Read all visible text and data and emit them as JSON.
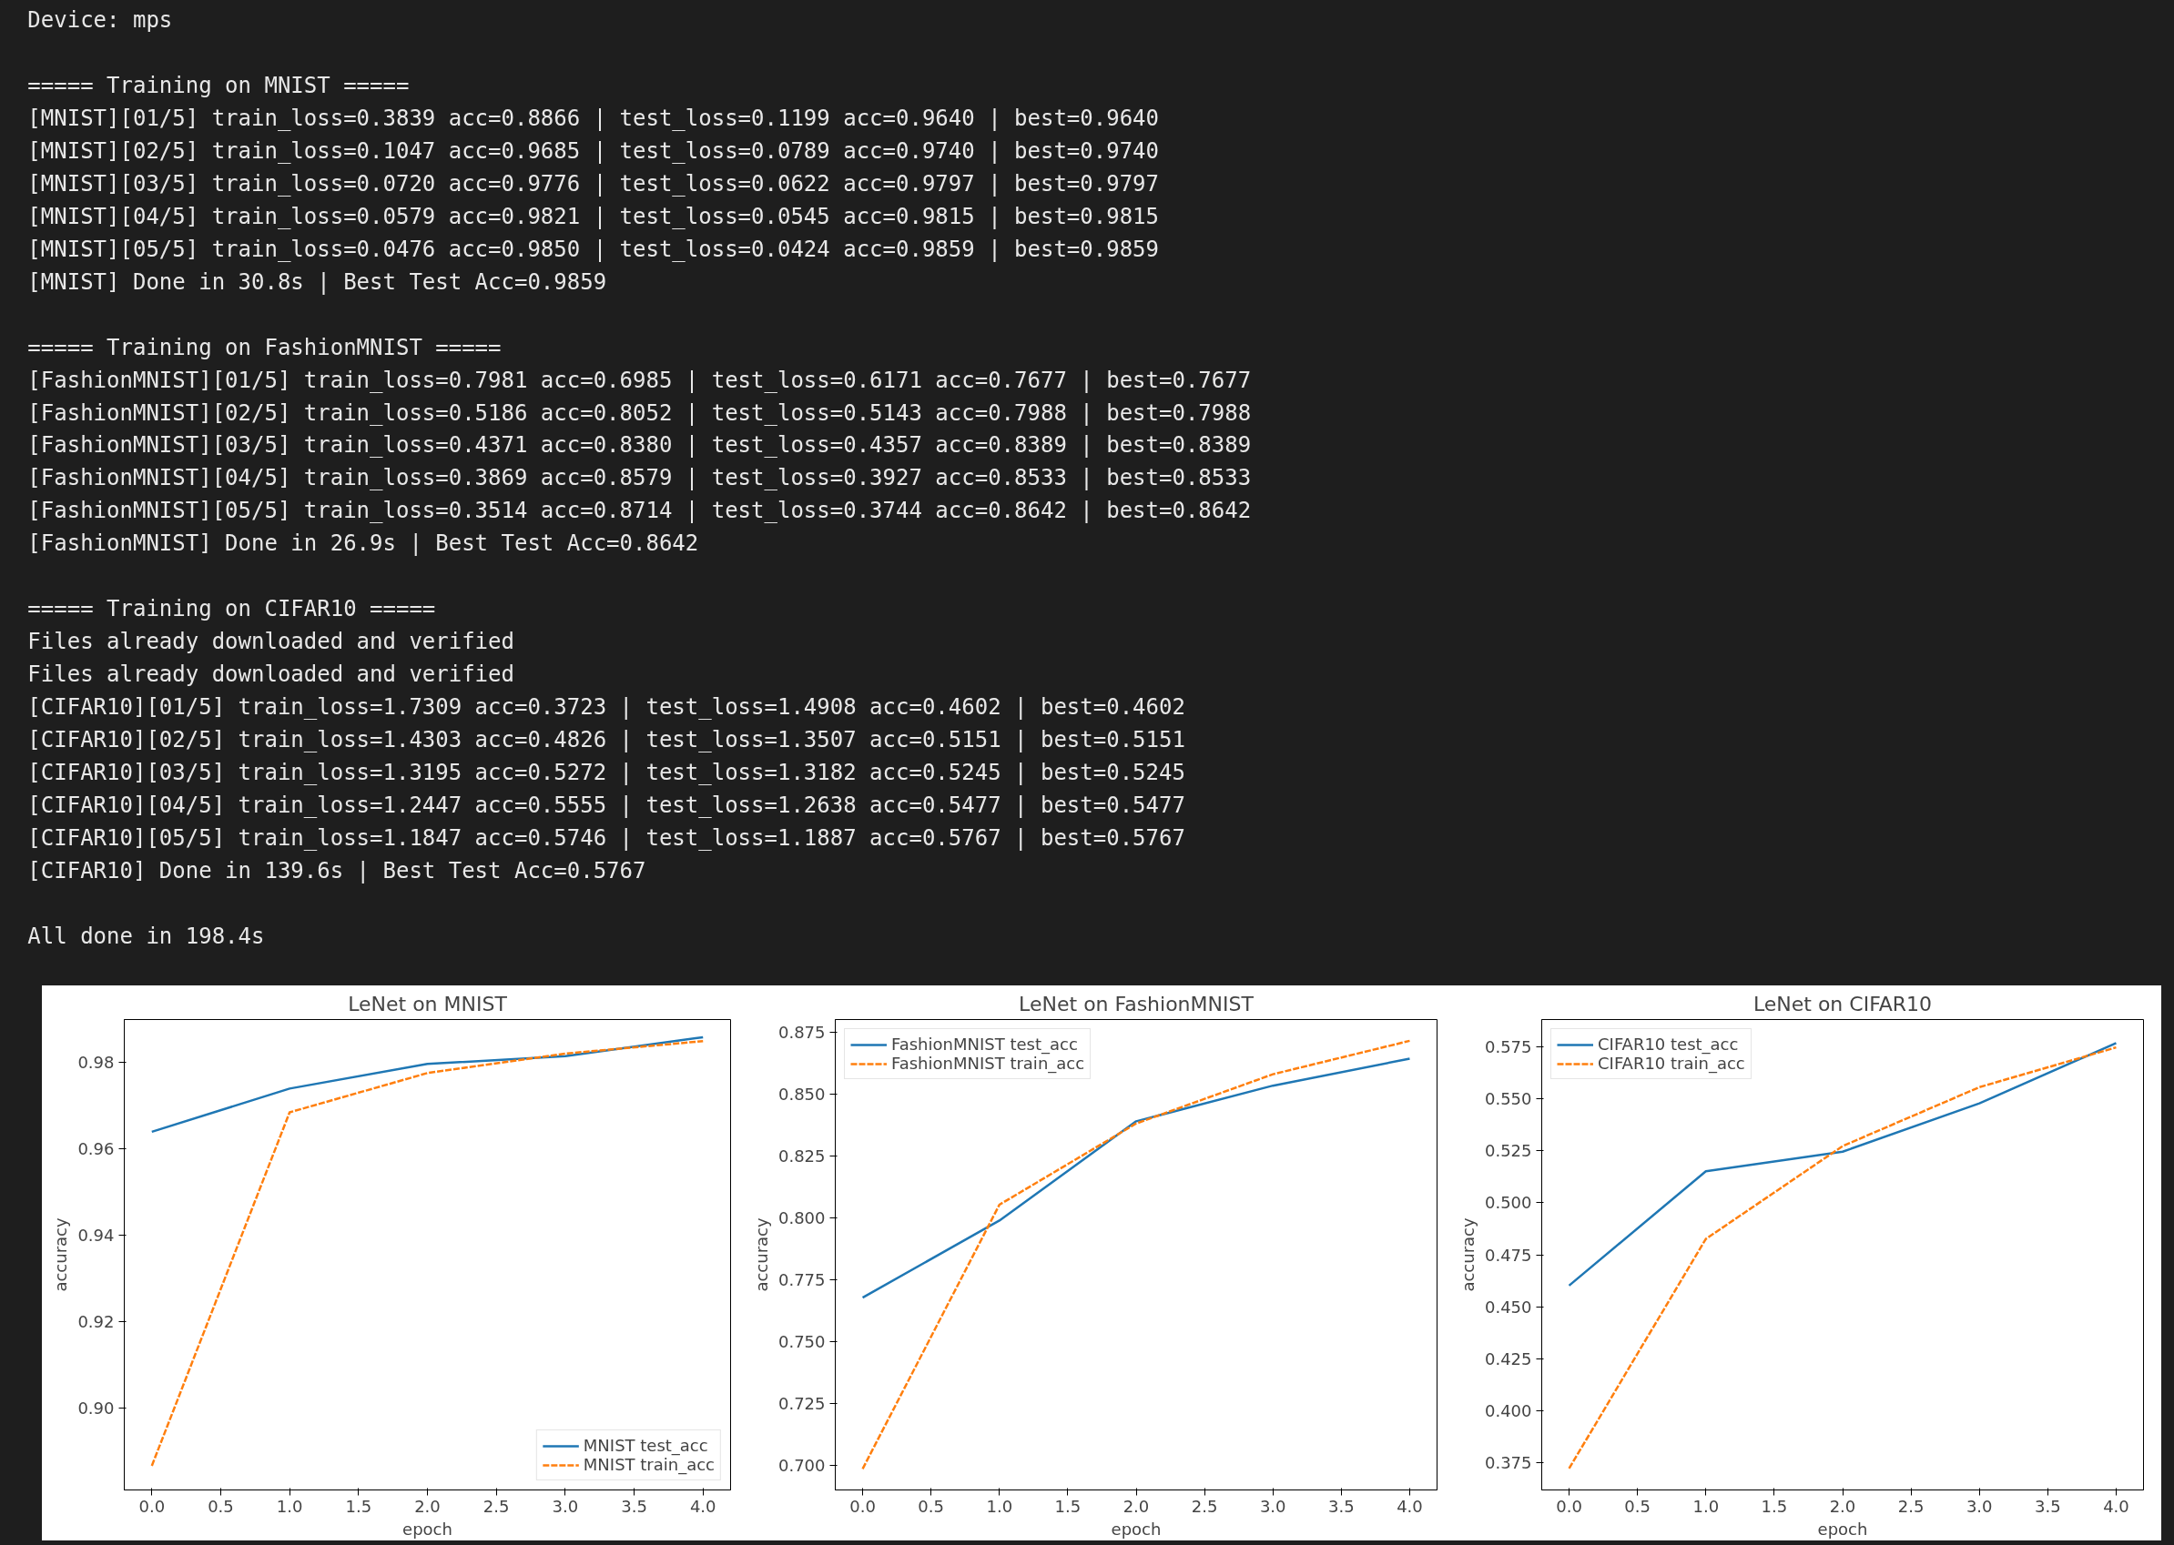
{
  "chart_data": [
    {
      "type": "other",
      "annotations": [
        "Device: mps",
        "===== Training on MNIST =====\n[MNIST][01/5] train_loss=0.3839 acc=0.8866 | test_loss=0.1199 acc=0.9640 | best=0.9640\n[MNIST][02/5] train_loss=0.1047 acc=0.9685 | test_loss=0.0789 acc=0.9740 | best=0.9740\n[MNIST][03/5] train_loss=0.0720 acc=0.9776 | test_loss=0.0622 acc=0.9797 | best=0.9797\n[MNIST][04/5] train_loss=0.0579 acc=0.9821 | test_loss=0.0545 acc=0.9815 | best=0.9815\n[MNIST][05/5] train_loss=0.0476 acc=0.9850 | test_loss=0.0424 acc=0.9859 | best=0.9859\n[MNIST] Done in 30.8s | Best Test Acc=0.9859",
        "===== Training on FashionMNIST =====\n[FashionMNIST][01/5] train_loss=0.7981 acc=0.6985 | test_loss=0.6171 acc=0.7677 | best=0.7677\n[FashionMNIST][02/5] train_loss=0.5186 acc=0.8052 | test_loss=0.5143 acc=0.7988 | best=0.7988\n[FashionMNIST][03/5] train_loss=0.4371 acc=0.8380 | test_loss=0.4357 acc=0.8389 | best=0.8389\n[FashionMNIST][04/5] train_loss=0.3869 acc=0.8579 | test_loss=0.3927 acc=0.8533 | best=0.8533\n[FashionMNIST][05/5] train_loss=0.3514 acc=0.8714 | test_loss=0.3744 acc=0.8642 | best=0.8642\n[FashionMNIST] Done in 26.9s | Best Test Acc=0.8642",
        "===== Training on CIFAR10 =====\nFiles already downloaded and verified\nFiles already downloaded and verified\n[CIFAR10][01/5] train_loss=1.7309 acc=0.3723 | test_loss=1.4908 acc=0.4602 | best=0.4602\n[CIFAR10][02/5] train_loss=1.4303 acc=0.4826 | test_loss=1.3507 acc=0.5151 | best=0.5151\n[CIFAR10][03/5] train_loss=1.3195 acc=0.5272 | test_loss=1.3182 acc=0.5245 | best=0.5245\n[CIFAR10][04/5] train_loss=1.2447 acc=0.5555 | test_loss=1.2638 acc=0.5477 | best=0.5477\n[CIFAR10][05/5] train_loss=1.1847 acc=0.5746 | test_loss=1.1887 acc=0.5767 | best=0.5767\n[CIFAR10] Done in 139.6s | Best Test Acc=0.5767",
        "All done in 198.4s"
      ]
    },
    {
      "type": "line",
      "title": "LeNet on MNIST",
      "xlabel": "epoch",
      "ylabel": "accuracy",
      "x": [
        0,
        1,
        2,
        3,
        4
      ],
      "legend": "bottom right",
      "series": [
        {
          "name": "MNIST test_acc",
          "color": "#1f77b4",
          "line_style": "solid",
          "values": [
            0.964,
            0.974,
            0.9797,
            0.9815,
            0.9859
          ]
        },
        {
          "name": "MNIST train_acc",
          "color": "#ff7f0e",
          "line_style": "dashed",
          "values": [
            0.8866,
            0.9685,
            0.9776,
            0.9821,
            0.985
          ]
        }
      ],
      "xlim": [
        -0.2,
        4.2
      ],
      "ylim": [
        0.881,
        0.99
      ],
      "xticks": [
        {
          "value": 0,
          "label": "0.0"
        },
        {
          "value": 0.5,
          "label": "0.5"
        },
        {
          "value": 1,
          "label": "1.0"
        },
        {
          "value": 1.5,
          "label": "1.5"
        },
        {
          "value": 2,
          "label": "2.0"
        },
        {
          "value": 2.5,
          "label": "2.5"
        },
        {
          "value": 3,
          "label": "3.0"
        },
        {
          "value": 3.5,
          "label": "3.5"
        },
        {
          "value": 4,
          "label": "4.0"
        }
      ],
      "yticks": [
        {
          "value": 0.9,
          "label": "0.90"
        },
        {
          "value": 0.92,
          "label": "0.92"
        },
        {
          "value": 0.94,
          "label": "0.94"
        },
        {
          "value": 0.96,
          "label": "0.96"
        },
        {
          "value": 0.98,
          "label": "0.98"
        }
      ]
    },
    {
      "type": "line",
      "title": "LeNet on FashionMNIST",
      "xlabel": "epoch",
      "ylabel": "accuracy",
      "x": [
        0,
        1,
        2,
        3,
        4
      ],
      "legend": "top left",
      "series": [
        {
          "name": "FashionMNIST test_acc",
          "color": "#1f77b4",
          "line_style": "solid",
          "values": [
            0.7677,
            0.7988,
            0.8389,
            0.8533,
            0.8642
          ]
        },
        {
          "name": "FashionMNIST train_acc",
          "color": "#ff7f0e",
          "line_style": "dashed",
          "values": [
            0.6985,
            0.8052,
            0.838,
            0.8579,
            0.8714
          ]
        }
      ],
      "xlim": [
        -0.2,
        4.2
      ],
      "ylim": [
        0.69,
        0.88
      ],
      "xticks": [
        {
          "value": 0,
          "label": "0.0"
        },
        {
          "value": 0.5,
          "label": "0.5"
        },
        {
          "value": 1,
          "label": "1.0"
        },
        {
          "value": 1.5,
          "label": "1.5"
        },
        {
          "value": 2,
          "label": "2.0"
        },
        {
          "value": 2.5,
          "label": "2.5"
        },
        {
          "value": 3,
          "label": "3.0"
        },
        {
          "value": 3.5,
          "label": "3.5"
        },
        {
          "value": 4,
          "label": "4.0"
        }
      ],
      "yticks": [
        {
          "value": 0.7,
          "label": "0.700"
        },
        {
          "value": 0.725,
          "label": "0.725"
        },
        {
          "value": 0.75,
          "label": "0.750"
        },
        {
          "value": 0.775,
          "label": "0.775"
        },
        {
          "value": 0.8,
          "label": "0.800"
        },
        {
          "value": 0.825,
          "label": "0.825"
        },
        {
          "value": 0.85,
          "label": "0.850"
        },
        {
          "value": 0.875,
          "label": "0.875"
        }
      ]
    },
    {
      "type": "line",
      "title": "LeNet on CIFAR10",
      "xlabel": "epoch",
      "ylabel": "accuracy",
      "x": [
        0,
        1,
        2,
        3,
        4
      ],
      "legend": "top left",
      "series": [
        {
          "name": "CIFAR10 test_acc",
          "color": "#1f77b4",
          "line_style": "solid",
          "values": [
            0.4602,
            0.5151,
            0.5245,
            0.5477,
            0.5767
          ]
        },
        {
          "name": "CIFAR10 train_acc",
          "color": "#ff7f0e",
          "line_style": "dashed",
          "values": [
            0.3723,
            0.4826,
            0.5272,
            0.5555,
            0.5746
          ]
        }
      ],
      "xlim": [
        -0.2,
        4.2
      ],
      "ylim": [
        0.362,
        0.588
      ],
      "xticks": [
        {
          "value": 0,
          "label": "0.0"
        },
        {
          "value": 0.5,
          "label": "0.5"
        },
        {
          "value": 1,
          "label": "1.0"
        },
        {
          "value": 1.5,
          "label": "1.5"
        },
        {
          "value": 2,
          "label": "2.0"
        },
        {
          "value": 2.5,
          "label": "2.5"
        },
        {
          "value": 3,
          "label": "3.0"
        },
        {
          "value": 3.5,
          "label": "3.5"
        },
        {
          "value": 4,
          "label": "4.0"
        }
      ],
      "yticks": [
        {
          "value": 0.375,
          "label": "0.375"
        },
        {
          "value": 0.4,
          "label": "0.400"
        },
        {
          "value": 0.425,
          "label": "0.425"
        },
        {
          "value": 0.45,
          "label": "0.450"
        },
        {
          "value": 0.475,
          "label": "0.475"
        },
        {
          "value": 0.5,
          "label": "0.500"
        },
        {
          "value": 0.525,
          "label": "0.525"
        },
        {
          "value": 0.55,
          "label": "0.550"
        },
        {
          "value": 0.575,
          "label": "0.575"
        }
      ]
    }
  ]
}
